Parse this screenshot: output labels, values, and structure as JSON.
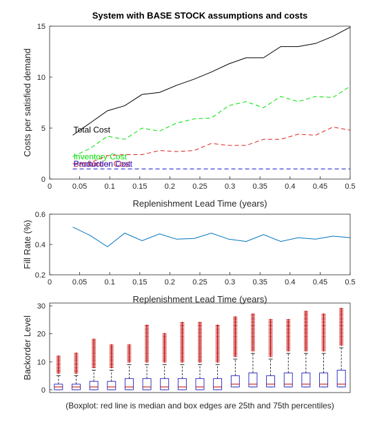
{
  "title": "System with BASE STOCK assumptions and costs",
  "caption": "(Boxplot: red line is median and box edges are 25th and 75th percentiles)",
  "colors": {
    "total": "#000000",
    "inventory": "#00e000",
    "backorder": "#e02020",
    "production": "#1010d0",
    "fill": "#0072bd",
    "box": "#1f1fbf",
    "outlier": "#c00000"
  },
  "chart_data": [
    {
      "type": "line",
      "xlabel": "Replenishment Lead Time (years)",
      "ylabel": "Costs per satisfied demand",
      "xlim": [
        0,
        0.5
      ],
      "ylim": [
        0,
        15
      ],
      "xticks": [
        "0",
        "0.05",
        "0.1",
        "0.15",
        "0.2",
        "0.25",
        "0.3",
        "0.35",
        "0.4",
        "0.45",
        "0.5"
      ],
      "yticks": [
        "0",
        "5",
        "10",
        "15"
      ],
      "grid": false,
      "x": [
        0.0385,
        0.0673,
        0.0962,
        0.125,
        0.1538,
        0.1827,
        0.2115,
        0.2404,
        0.2692,
        0.2981,
        0.3269,
        0.3558,
        0.3846,
        0.4135,
        0.4423,
        0.4712,
        0.5
      ],
      "series": [
        {
          "name": "Total Cost",
          "style": "solid",
          "values": [
            4.3,
            5.5,
            6.7,
            7.2,
            8.3,
            8.5,
            9.2,
            9.8,
            10.5,
            11.3,
            11.9,
            11.9,
            13.0,
            13.0,
            13.3,
            14.0,
            14.9
          ]
        },
        {
          "name": "Inventory Cost",
          "style": "dashed",
          "values": [
            2.2,
            3.0,
            4.2,
            3.9,
            5.0,
            4.7,
            5.5,
            5.9,
            6.0,
            7.2,
            7.6,
            7.0,
            8.1,
            7.6,
            8.1,
            8.0,
            9.1
          ]
        },
        {
          "name": "Backorder Cost",
          "style": "dashed",
          "values": [
            1.5,
            1.6,
            2.3,
            2.4,
            2.4,
            2.8,
            2.7,
            2.8,
            3.5,
            3.3,
            3.3,
            3.9,
            3.9,
            4.4,
            4.3,
            5.1,
            4.8
          ]
        },
        {
          "name": "Production Cost",
          "style": "dashed",
          "values": [
            1.0,
            1.0,
            1.0,
            1.0,
            1.0,
            1.0,
            1.0,
            1.0,
            1.0,
            1.0,
            1.0,
            1.0,
            1.0,
            1.0,
            1.0,
            1.0,
            1.0
          ]
        }
      ]
    },
    {
      "type": "line",
      "xlabel": "Replenishment Lead Time (years)",
      "ylabel": "Fill Rate (%)",
      "xlim": [
        0,
        0.5
      ],
      "ylim": [
        0.2,
        0.6
      ],
      "xticks": [
        "0",
        "0.05",
        "0.1",
        "0.15",
        "0.2",
        "0.25",
        "0.3",
        "0.35",
        "0.4",
        "0.45",
        "0.5"
      ],
      "yticks": [
        "0.2",
        "0.4",
        "0.6"
      ],
      "grid": false,
      "x": [
        0.0385,
        0.0673,
        0.0962,
        0.125,
        0.1538,
        0.1827,
        0.2115,
        0.2404,
        0.2692,
        0.2981,
        0.3269,
        0.3558,
        0.3846,
        0.4135,
        0.4423,
        0.4712,
        0.5
      ],
      "values": [
        0.515,
        0.46,
        0.385,
        0.475,
        0.425,
        0.47,
        0.435,
        0.44,
        0.475,
        0.435,
        0.42,
        0.465,
        0.42,
        0.445,
        0.435,
        0.455,
        0.445
      ]
    },
    {
      "type": "box",
      "ylabel": "Backorder Level",
      "ylim": [
        -1,
        31
      ],
      "yticks": [
        "0",
        "10",
        "20",
        "30"
      ],
      "boxes": [
        {
          "q1": 0,
          "median": 1,
          "q3": 2,
          "whisker_high": 5,
          "outlier_max": 12
        },
        {
          "q1": 0,
          "median": 1,
          "q3": 2,
          "whisker_high": 5,
          "outlier_max": 13
        },
        {
          "q1": 0,
          "median": 1,
          "q3": 3,
          "whisker_high": 7,
          "outlier_max": 18
        },
        {
          "q1": 0,
          "median": 1,
          "q3": 3,
          "whisker_high": 7,
          "outlier_max": 16
        },
        {
          "q1": 0,
          "median": 1,
          "q3": 4,
          "whisker_high": 9,
          "outlier_max": 16
        },
        {
          "q1": 0,
          "median": 1,
          "q3": 4,
          "whisker_high": 9,
          "outlier_max": 23
        },
        {
          "q1": 0,
          "median": 1,
          "q3": 4,
          "whisker_high": 9,
          "outlier_max": 20
        },
        {
          "q1": 0,
          "median": 1,
          "q3": 4,
          "whisker_high": 9,
          "outlier_max": 24
        },
        {
          "q1": 0,
          "median": 1,
          "q3": 4,
          "whisker_high": 9,
          "outlier_max": 24
        },
        {
          "q1": 0,
          "median": 1,
          "q3": 4,
          "whisker_high": 9,
          "outlier_max": 23
        },
        {
          "q1": 1,
          "median": 2,
          "q3": 5,
          "whisker_high": 11,
          "outlier_max": 26
        },
        {
          "q1": 1,
          "median": 2,
          "q3": 6,
          "whisker_high": 13,
          "outlier_max": 27
        },
        {
          "q1": 1,
          "median": 2,
          "q3": 5,
          "whisker_high": 11,
          "outlier_max": 25
        },
        {
          "q1": 1,
          "median": 2,
          "q3": 6,
          "whisker_high": 13,
          "outlier_max": 25
        },
        {
          "q1": 1,
          "median": 2,
          "q3": 6,
          "whisker_high": 13,
          "outlier_max": 28
        },
        {
          "q1": 1,
          "median": 2,
          "q3": 6,
          "whisker_high": 13,
          "outlier_max": 27
        },
        {
          "q1": 1,
          "median": 2,
          "q3": 7,
          "whisker_high": 15,
          "outlier_max": 29
        }
      ]
    }
  ]
}
